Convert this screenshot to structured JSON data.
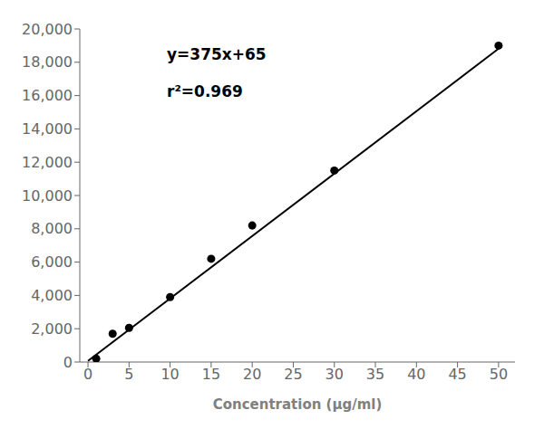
{
  "chart_data": {
    "type": "scatter",
    "xlabel": "Concentration (μg/ml)",
    "annotations": [
      "y=375x+65",
      "r²=0.969"
    ],
    "series": [
      {
        "type": "scatter",
        "color": "#000000",
        "marker": "circle",
        "x": [
          1,
          3,
          5,
          10,
          15,
          20,
          30,
          50
        ],
        "values": [
          200,
          1700,
          2050,
          3900,
          6200,
          8200,
          11500,
          19000
        ]
      },
      {
        "type": "line",
        "color": "#000000",
        "line_style": "solid",
        "x": [
          0,
          50
        ],
        "values": [
          65,
          18815
        ]
      }
    ],
    "xlim": [
      -1,
      52
    ],
    "ylim": [
      0,
      20000
    ],
    "xticks": [
      0,
      5,
      10,
      15,
      20,
      25,
      30,
      35,
      40,
      45,
      50
    ],
    "yticks": [
      0,
      {
        "value": 2000,
        "label": "2,000"
      },
      {
        "value": 4000,
        "label": "4,000"
      },
      {
        "value": 6000,
        "label": "6,000"
      },
      {
        "value": 8000,
        "label": "8,000"
      },
      {
        "value": 10000,
        "label": "10,000"
      },
      {
        "value": 12000,
        "label": "12,000"
      },
      {
        "value": 14000,
        "label": "14,000"
      },
      {
        "value": 16000,
        "label": "16,000"
      },
      {
        "value": 18000,
        "label": "18,000"
      },
      {
        "value": 20000,
        "label": "20,000"
      }
    ],
    "grid": false
  }
}
